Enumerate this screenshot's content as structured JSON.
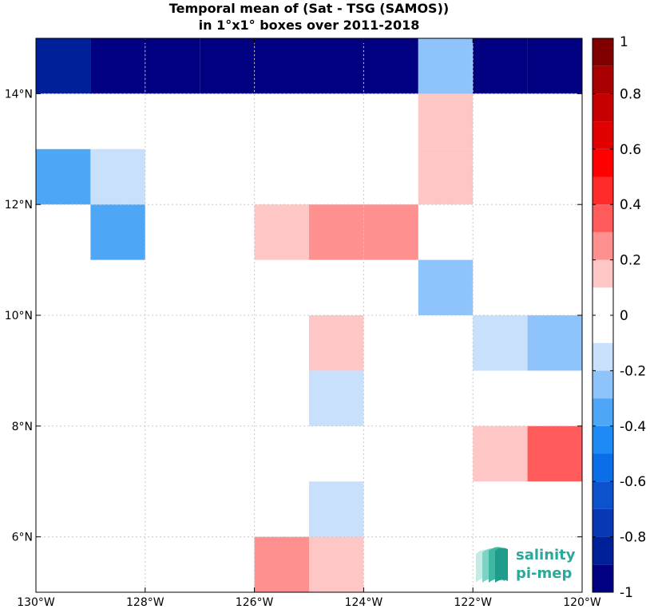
{
  "chart_data": {
    "type": "heatmap",
    "title_line1": "Temporal mean of (Sat - TSG (SAMOS))",
    "title_line2": "in 1°x1° boxes over 2011-2018",
    "xlim": [
      -130,
      -120
    ],
    "ylim": [
      5,
      15
    ],
    "grid": true,
    "x_ticks": [
      {
        "value": -130,
        "label": "130°W"
      },
      {
        "value": -128,
        "label": "128°W"
      },
      {
        "value": -126,
        "label": "126°W"
      },
      {
        "value": -124,
        "label": "124°W"
      },
      {
        "value": -122,
        "label": "122°W"
      },
      {
        "value": -120,
        "label": "120°W"
      }
    ],
    "y_ticks": [
      {
        "value": 6,
        "label": "6°N"
      },
      {
        "value": 8,
        "label": "8°N"
      },
      {
        "value": 10,
        "label": "10°N"
      },
      {
        "value": 12,
        "label": "12°N"
      },
      {
        "value": 14,
        "label": "14°N"
      }
    ],
    "cells": [
      {
        "lon": -130,
        "lat": 14,
        "value": -0.85
      },
      {
        "lon": -129,
        "lat": 14,
        "value": -1.0
      },
      {
        "lon": -128,
        "lat": 14,
        "value": -1.0
      },
      {
        "lon": -127,
        "lat": 14,
        "value": -1.0
      },
      {
        "lon": -126,
        "lat": 14,
        "value": -1.0
      },
      {
        "lon": -125,
        "lat": 14,
        "value": -1.0
      },
      {
        "lon": -124,
        "lat": 14,
        "value": -1.0
      },
      {
        "lon": -123,
        "lat": 14,
        "value": -0.25
      },
      {
        "lon": -122,
        "lat": 14,
        "value": -1.0
      },
      {
        "lon": -121,
        "lat": 14,
        "value": -1.0
      },
      {
        "lon": -120,
        "lat": 14,
        "value": -1.0
      },
      {
        "lon": -123,
        "lat": 13,
        "value": 0.15
      },
      {
        "lon": -130,
        "lat": 12,
        "value": -0.35
      },
      {
        "lon": -129,
        "lat": 12,
        "value": -0.15
      },
      {
        "lon": -123,
        "lat": 12,
        "value": 0.15
      },
      {
        "lon": -129,
        "lat": 11,
        "value": -0.35
      },
      {
        "lon": -126,
        "lat": 11,
        "value": 0.15
      },
      {
        "lon": -125,
        "lat": 11,
        "value": 0.25
      },
      {
        "lon": -124,
        "lat": 11,
        "value": 0.25
      },
      {
        "lon": -123,
        "lat": 10,
        "value": -0.3
      },
      {
        "lon": -125,
        "lat": 9,
        "value": 0.15
      },
      {
        "lon": -122,
        "lat": 9,
        "value": -0.15
      },
      {
        "lon": -121,
        "lat": 9,
        "value": -0.25
      },
      {
        "lon": -125,
        "lat": 8,
        "value": -0.15
      },
      {
        "lon": -122,
        "lat": 7,
        "value": 0.15
      },
      {
        "lon": -121,
        "lat": 7,
        "value": 0.35
      },
      {
        "lon": -120,
        "lat": 7,
        "value": 0.45
      },
      {
        "lon": -125,
        "lat": 6,
        "value": -0.15
      },
      {
        "lon": -126,
        "lat": 5,
        "value": 0.25
      },
      {
        "lon": -125,
        "lat": 5,
        "value": 0.15
      }
    ],
    "colorbar": {
      "range": [
        -1,
        1
      ],
      "ticks": [
        {
          "value": 1,
          "label": "1"
        },
        {
          "value": 0.8,
          "label": "0.8"
        },
        {
          "value": 0.6,
          "label": "0.6"
        },
        {
          "value": 0.4,
          "label": "0.4"
        },
        {
          "value": 0.2,
          "label": "0.2"
        },
        {
          "value": 0,
          "label": "0"
        },
        {
          "value": -0.2,
          "label": "-0.2"
        },
        {
          "value": -0.4,
          "label": "-0.4"
        },
        {
          "value": -0.6,
          "label": "-0.6"
        },
        {
          "value": -0.8,
          "label": "-0.8"
        },
        {
          "value": -1,
          "label": "-1"
        }
      ],
      "colors_low_to_high": [
        "#000080",
        "#00209a",
        "#0838b4",
        "#0c52cc",
        "#0a6ee8",
        "#1e8bf5",
        "#4ea6f7",
        "#8ec4fb",
        "#c8e0fc",
        "#ffffff",
        "#ffffff",
        "#ffc6c6",
        "#ff9090",
        "#ff5b5b",
        "#ff2a2a",
        "#ff0000",
        "#e00000",
        "#c60000",
        "#a80000",
        "#800000"
      ]
    }
  },
  "logo": {
    "line1": "salinity",
    "line2": "pi-mep"
  }
}
